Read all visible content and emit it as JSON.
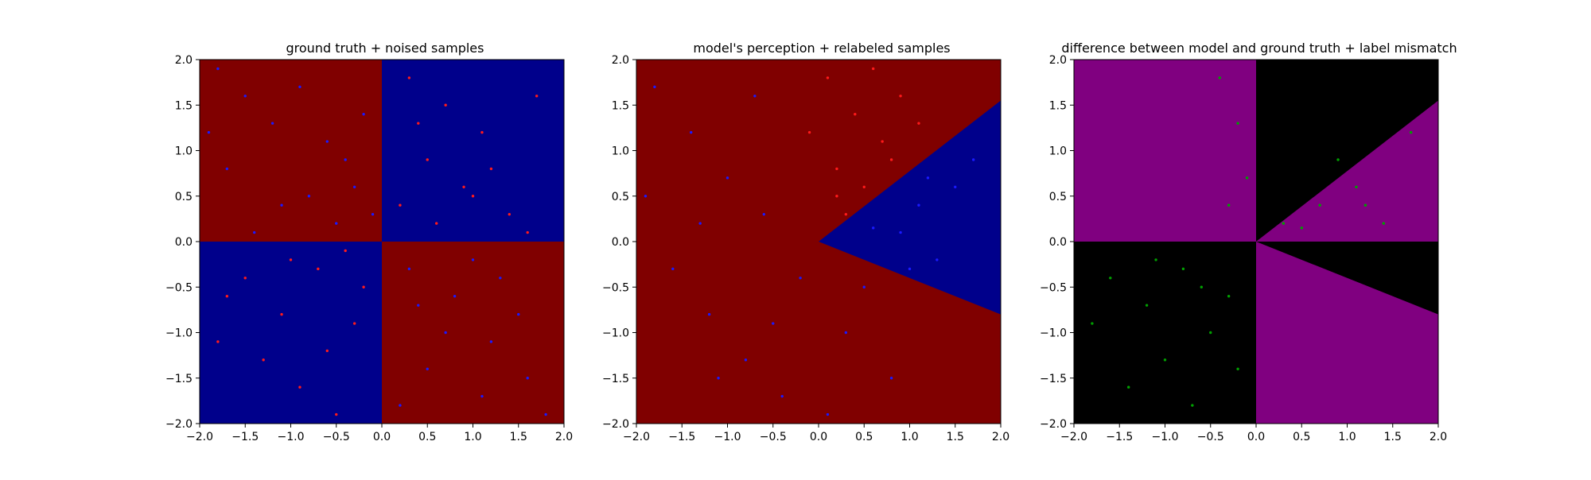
{
  "colors": {
    "red_region": "#800000",
    "blue_region": "#00008b",
    "red_point": "#ff1a1a",
    "blue_point": "#1a1aff",
    "purple_region": "#800080",
    "black_region": "#000000",
    "green_point": "#00a000"
  },
  "chart_data": [
    {
      "type": "scatter",
      "title": "ground truth + noised samples",
      "xlabel": "",
      "ylabel": "",
      "xlim": [
        -2.0,
        2.0
      ],
      "ylim": [
        -2.0,
        2.0
      ],
      "xticks": [
        "−2.0",
        "−1.5",
        "−1.0",
        "−0.5",
        "0.0",
        "0.5",
        "1.0",
        "1.5",
        "2.0"
      ],
      "yticks": [
        "−2.0",
        "−1.5",
        "−1.0",
        "−0.5",
        "0.0",
        "0.5",
        "1.0",
        "1.5",
        "2.0"
      ],
      "grid": false,
      "background": "quadrant",
      "regions": [
        {
          "name": "red",
          "x0": -2,
          "y0": 0,
          "x1": 0,
          "y1": 2
        },
        {
          "name": "blue",
          "x0": 0,
          "y0": 0,
          "x1": 2,
          "y1": 2
        },
        {
          "name": "blue",
          "x0": -2,
          "y0": -2,
          "x1": 0,
          "y1": 0
        },
        {
          "name": "red",
          "x0": 0,
          "y0": -2,
          "x1": 2,
          "y1": 0
        }
      ],
      "series": [
        {
          "color": "blue_point",
          "points": [
            [
              -1.8,
              1.9
            ],
            [
              -1.5,
              1.6
            ],
            [
              -1.2,
              1.3
            ],
            [
              -0.9,
              1.7
            ],
            [
              -0.6,
              1.1
            ],
            [
              -0.3,
              0.6
            ],
            [
              -1.7,
              0.8
            ],
            [
              -1.1,
              0.4
            ],
            [
              -0.5,
              0.2
            ],
            [
              -1.4,
              0.1
            ],
            [
              -0.2,
              1.4
            ],
            [
              -0.8,
              0.5
            ],
            [
              0.3,
              -0.3
            ],
            [
              0.8,
              -0.6
            ],
            [
              1.2,
              -1.1
            ],
            [
              1.6,
              -1.5
            ],
            [
              0.5,
              -1.4
            ],
            [
              1.0,
              -0.2
            ],
            [
              1.5,
              -0.8
            ],
            [
              0.2,
              -1.8
            ],
            [
              1.8,
              -1.9
            ],
            [
              0.7,
              -1.0
            ],
            [
              1.3,
              -0.4
            ],
            [
              0.4,
              -0.7
            ],
            [
              -0.1,
              0.3
            ],
            [
              -1.9,
              1.2
            ],
            [
              1.1,
              -1.7
            ],
            [
              -0.4,
              0.9
            ]
          ]
        },
        {
          "color": "red_point",
          "points": [
            [
              0.3,
              1.8
            ],
            [
              0.7,
              1.5
            ],
            [
              1.1,
              1.2
            ],
            [
              0.5,
              0.9
            ],
            [
              0.9,
              0.6
            ],
            [
              1.4,
              0.3
            ],
            [
              0.2,
              0.4
            ],
            [
              1.7,
              1.6
            ],
            [
              0.6,
              0.2
            ],
            [
              1.2,
              0.8
            ],
            [
              -1.5,
              -0.4
            ],
            [
              -1.1,
              -0.8
            ],
            [
              -0.7,
              -0.3
            ],
            [
              -0.3,
              -0.9
            ],
            [
              -1.3,
              -1.3
            ],
            [
              -0.9,
              -1.6
            ],
            [
              -0.5,
              -1.9
            ],
            [
              -1.7,
              -0.6
            ],
            [
              -0.2,
              -0.5
            ],
            [
              -0.6,
              -1.2
            ],
            [
              1.0,
              0.5
            ],
            [
              0.4,
              1.3
            ],
            [
              1.6,
              0.1
            ],
            [
              -1.0,
              -0.2
            ],
            [
              -1.8,
              -1.1
            ],
            [
              -0.4,
              -0.1
            ]
          ]
        }
      ]
    },
    {
      "type": "scatter",
      "title": "model's perception + relabeled samples",
      "xlabel": "",
      "ylabel": "",
      "xlim": [
        -2.0,
        2.0
      ],
      "ylim": [
        -2.0,
        2.0
      ],
      "xticks": [
        "−2.0",
        "−1.5",
        "−1.0",
        "−0.5",
        "0.0",
        "0.5",
        "1.0",
        "1.5",
        "2.0"
      ],
      "yticks": [
        "−2.0",
        "−1.5",
        "−1.0",
        "−0.5",
        "0.0",
        "0.5",
        "1.0",
        "1.5",
        "2.0"
      ],
      "grid": false,
      "background": "wedge",
      "wedge_boundary": [
        [
          0,
          0
        ],
        [
          2.0,
          1.55
        ],
        [
          2.0,
          -0.8
        ]
      ],
      "series": [
        {
          "color": "blue_point",
          "points": [
            [
              -1.8,
              1.7
            ],
            [
              -1.4,
              1.2
            ],
            [
              -1.0,
              0.7
            ],
            [
              -0.6,
              0.3
            ],
            [
              -1.6,
              -0.3
            ],
            [
              -1.2,
              -0.8
            ],
            [
              -0.8,
              -1.3
            ],
            [
              -0.4,
              -1.7
            ],
            [
              -0.2,
              -0.4
            ],
            [
              0.3,
              -1.0
            ],
            [
              0.8,
              -1.5
            ],
            [
              0.5,
              -0.5
            ],
            [
              1.1,
              0.4
            ],
            [
              1.5,
              0.6
            ],
            [
              0.9,
              0.1
            ],
            [
              1.3,
              -0.2
            ],
            [
              1.7,
              0.9
            ],
            [
              0.6,
              0.15
            ],
            [
              1.0,
              -0.3
            ],
            [
              -1.9,
              0.5
            ],
            [
              -0.5,
              -0.9
            ],
            [
              0.1,
              -1.9
            ],
            [
              -1.1,
              -1.5
            ],
            [
              1.2,
              0.7
            ],
            [
              -0.7,
              1.6
            ],
            [
              -1.3,
              0.2
            ]
          ]
        },
        {
          "color": "red_point",
          "points": [
            [
              0.1,
              1.8
            ],
            [
              0.4,
              1.4
            ],
            [
              0.7,
              1.1
            ],
            [
              0.2,
              0.8
            ],
            [
              0.5,
              0.6
            ],
            [
              0.9,
              1.6
            ],
            [
              0.3,
              0.3
            ],
            [
              1.1,
              1.3
            ],
            [
              0.6,
              1.9
            ],
            [
              -0.1,
              1.2
            ],
            [
              0.2,
              0.5
            ],
            [
              0.8,
              0.9
            ]
          ]
        }
      ]
    },
    {
      "type": "scatter",
      "title": "difference between model and ground truth + label mismatch",
      "xlabel": "",
      "ylabel": "",
      "xlim": [
        -2.0,
        2.0
      ],
      "ylim": [
        -2.0,
        2.0
      ],
      "xticks": [
        "−2.0",
        "−1.5",
        "−1.0",
        "−0.5",
        "0.0",
        "0.5",
        "1.0",
        "1.5",
        "2.0"
      ],
      "yticks": [
        "−2.0",
        "−1.5",
        "−1.0",
        "−0.5",
        "0.0",
        "0.5",
        "1.0",
        "1.5",
        "2.0"
      ],
      "grid": false,
      "background": "difference",
      "series": [
        {
          "color": "green_point",
          "points": [
            [
              -0.4,
              1.8
            ],
            [
              -0.2,
              1.3
            ],
            [
              -0.1,
              0.7
            ],
            [
              -0.3,
              0.4
            ],
            [
              0.3,
              0.2
            ],
            [
              0.7,
              0.4
            ],
            [
              1.1,
              0.6
            ],
            [
              1.4,
              0.2
            ],
            [
              1.7,
              1.2
            ],
            [
              0.9,
              0.9
            ],
            [
              -1.6,
              -0.4
            ],
            [
              -1.2,
              -0.7
            ],
            [
              -0.8,
              -0.3
            ],
            [
              -0.5,
              -1.0
            ],
            [
              -1.0,
              -1.3
            ],
            [
              -1.4,
              -1.6
            ],
            [
              -0.3,
              -0.6
            ],
            [
              -0.7,
              -1.8
            ],
            [
              -1.8,
              -0.9
            ],
            [
              -0.2,
              -1.4
            ],
            [
              0.5,
              0.15
            ],
            [
              1.2,
              0.4
            ],
            [
              -1.1,
              -0.2
            ],
            [
              -0.6,
              -0.5
            ]
          ]
        }
      ]
    }
  ]
}
